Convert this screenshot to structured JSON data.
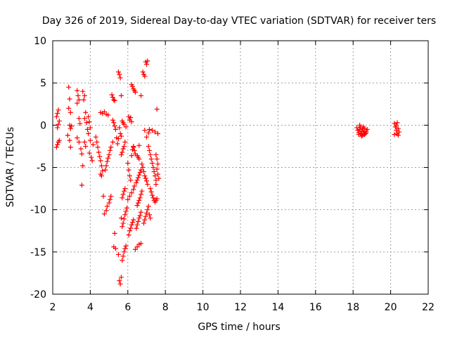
{
  "chart_data": {
    "type": "scatter",
    "title": "Day 326 of 2019, Sidereal Day-to-day VTEC variation (SDTVAR) for receiver ters",
    "xlabel": "GPS time / hours",
    "ylabel": "SDTVAR / TECUs",
    "xlim": [
      2,
      22
    ],
    "ylim": [
      -20,
      10
    ],
    "xticks": [
      2,
      4,
      6,
      8,
      10,
      12,
      14,
      16,
      18,
      20,
      22
    ],
    "yticks": [
      -20,
      -15,
      -10,
      -5,
      0,
      5,
      10
    ],
    "xtick_labels": [
      "2",
      "4",
      "6",
      "8",
      "10",
      "12",
      "14",
      "16",
      "18",
      "20",
      "22"
    ],
    "ytick_labels": [
      "-20",
      "-15",
      "-10",
      "-5",
      "0",
      "5",
      "10"
    ],
    "grid": true,
    "marker": "plus",
    "color": "#ff0000",
    "series": [
      {
        "name": "SDTVAR",
        "points": [
          [
            2.2,
            -2.6
          ],
          [
            2.25,
            -2.3
          ],
          [
            2.3,
            -2.0
          ],
          [
            2.35,
            -1.8
          ],
          [
            2.2,
            1.0
          ],
          [
            2.25,
            1.4
          ],
          [
            2.3,
            1.8
          ],
          [
            2.35,
            0.5
          ],
          [
            2.3,
            0.1
          ],
          [
            2.25,
            -0.3
          ],
          [
            2.85,
            4.5
          ],
          [
            2.9,
            3.1
          ],
          [
            2.85,
            2.0
          ],
          [
            2.95,
            1.5
          ],
          [
            2.9,
            0.0
          ],
          [
            2.95,
            -0.4
          ],
          [
            2.8,
            -1.2
          ],
          [
            2.9,
            -1.8
          ],
          [
            2.95,
            -2.6
          ],
          [
            3.0,
            -0.1
          ],
          [
            3.3,
            4.1
          ],
          [
            3.35,
            3.5
          ],
          [
            3.4,
            3.0
          ],
          [
            3.3,
            2.6
          ],
          [
            3.4,
            0.8
          ],
          [
            3.45,
            0.2
          ],
          [
            3.3,
            -1.5
          ],
          [
            3.4,
            -2.0
          ],
          [
            3.5,
            -2.8
          ],
          [
            3.55,
            -3.4
          ],
          [
            3.6,
            4.0
          ],
          [
            3.7,
            3.5
          ],
          [
            3.65,
            3.0
          ],
          [
            3.75,
            1.5
          ],
          [
            3.7,
            0.8
          ],
          [
            3.8,
            0.3
          ],
          [
            3.6,
            -4.8
          ],
          [
            3.55,
            -7.1
          ],
          [
            3.7,
            -2.0
          ],
          [
            3.75,
            -2.5
          ],
          [
            3.9,
            1.0
          ],
          [
            3.95,
            0.4
          ],
          [
            4.0,
            -0.3
          ],
          [
            3.85,
            -0.5
          ],
          [
            3.9,
            -1.0
          ],
          [
            4.0,
            -1.8
          ],
          [
            3.95,
            -3.3
          ],
          [
            4.05,
            -3.8
          ],
          [
            4.1,
            -4.2
          ],
          [
            4.15,
            -2.3
          ],
          [
            4.3,
            -1.4
          ],
          [
            4.35,
            -2.0
          ],
          [
            4.4,
            -2.6
          ],
          [
            4.45,
            -3.2
          ],
          [
            4.5,
            -3.7
          ],
          [
            4.55,
            -4.2
          ],
          [
            4.6,
            -4.8
          ],
          [
            4.65,
            -5.4
          ],
          [
            4.6,
            -6.0
          ],
          [
            4.55,
            -5.8
          ],
          [
            4.55,
            1.5
          ],
          [
            4.65,
            1.4
          ],
          [
            4.75,
            1.6
          ],
          [
            4.85,
            1.3
          ],
          [
            4.95,
            1.2
          ],
          [
            4.7,
            -8.4
          ],
          [
            4.75,
            -10.5
          ],
          [
            4.85,
            -10.1
          ],
          [
            4.9,
            -9.6
          ],
          [
            5.0,
            -9.2
          ],
          [
            5.05,
            -8.8
          ],
          [
            5.1,
            -8.4
          ],
          [
            4.8,
            -5.3
          ],
          [
            4.85,
            -4.8
          ],
          [
            4.9,
            -4.3
          ],
          [
            4.95,
            -3.9
          ],
          [
            5.0,
            -3.5
          ],
          [
            5.05,
            -3.0
          ],
          [
            5.1,
            -2.6
          ],
          [
            5.2,
            -2.0
          ],
          [
            5.15,
            3.6
          ],
          [
            5.2,
            3.3
          ],
          [
            5.25,
            3.0
          ],
          [
            5.3,
            2.9
          ],
          [
            5.2,
            0.6
          ],
          [
            5.25,
            0.3
          ],
          [
            5.3,
            -0.1
          ],
          [
            5.35,
            -0.5
          ],
          [
            5.3,
            -12.8
          ],
          [
            5.25,
            -14.4
          ],
          [
            5.35,
            -14.6
          ],
          [
            5.4,
            -1.5
          ],
          [
            5.45,
            -2.2
          ],
          [
            5.5,
            -1.6
          ],
          [
            5.55,
            -0.3
          ],
          [
            5.6,
            -1.0
          ],
          [
            5.5,
            6.3
          ],
          [
            5.55,
            6.0
          ],
          [
            5.6,
            5.6
          ],
          [
            5.65,
            3.5
          ],
          [
            5.55,
            -18.4
          ],
          [
            5.6,
            -18.8
          ],
          [
            5.65,
            -18.0
          ],
          [
            5.5,
            -15.3
          ],
          [
            5.7,
            -16.0
          ],
          [
            5.75,
            -15.5
          ],
          [
            5.8,
            -15.0
          ],
          [
            5.85,
            -14.6
          ],
          [
            5.9,
            -14.3
          ],
          [
            5.65,
            -11.0
          ],
          [
            5.7,
            -12.0
          ],
          [
            5.75,
            -11.6
          ],
          [
            5.8,
            -11.1
          ],
          [
            5.85,
            -10.6
          ],
          [
            5.9,
            -10.2
          ],
          [
            5.95,
            -9.8
          ],
          [
            5.7,
            -8.6
          ],
          [
            5.75,
            -8.2
          ],
          [
            5.8,
            -7.8
          ],
          [
            5.85,
            -7.5
          ],
          [
            5.65,
            -3.5
          ],
          [
            5.7,
            -3.2
          ],
          [
            5.75,
            -2.8
          ],
          [
            5.8,
            -2.5
          ],
          [
            5.85,
            -2.0
          ],
          [
            5.7,
            0.5
          ],
          [
            5.75,
            0.3
          ],
          [
            5.8,
            0.1
          ],
          [
            5.9,
            -0.2
          ],
          [
            5.65,
            -1.3
          ],
          [
            6.0,
            -4.5
          ],
          [
            6.05,
            -5.3
          ],
          [
            6.1,
            -6.0
          ],
          [
            6.15,
            -6.5
          ],
          [
            6.2,
            -3.6
          ],
          [
            6.25,
            -2.9
          ],
          [
            6.3,
            -2.6
          ],
          [
            6.05,
            -13.0
          ],
          [
            6.1,
            -12.5
          ],
          [
            6.15,
            -12.2
          ],
          [
            6.2,
            -11.8
          ],
          [
            6.25,
            -11.5
          ],
          [
            6.3,
            -11.2
          ],
          [
            6.0,
            -8.8
          ],
          [
            6.1,
            -8.4
          ],
          [
            6.2,
            -8.0
          ],
          [
            6.3,
            -7.6
          ],
          [
            6.35,
            -7.2
          ],
          [
            6.05,
            1.0
          ],
          [
            6.1,
            0.6
          ],
          [
            6.2,
            4.8
          ],
          [
            6.25,
            4.6
          ],
          [
            6.3,
            4.3
          ],
          [
            6.35,
            4.1
          ],
          [
            6.4,
            3.9
          ],
          [
            6.15,
            0.9
          ],
          [
            6.2,
            0.4
          ],
          [
            6.3,
            -2.5
          ],
          [
            6.35,
            -3.0
          ],
          [
            6.4,
            -3.4
          ],
          [
            6.4,
            -14.7
          ],
          [
            6.5,
            -14.4
          ],
          [
            6.6,
            -14.1
          ],
          [
            6.7,
            -14.0
          ],
          [
            6.45,
            -12.2
          ],
          [
            6.5,
            -11.8
          ],
          [
            6.55,
            -11.4
          ],
          [
            6.6,
            -11.0
          ],
          [
            6.65,
            -10.7
          ],
          [
            6.7,
            -10.3
          ],
          [
            6.45,
            -6.8
          ],
          [
            6.5,
            -6.5
          ],
          [
            6.55,
            -6.2
          ],
          [
            6.6,
            -5.9
          ],
          [
            6.65,
            -5.6
          ],
          [
            6.7,
            -5.3
          ],
          [
            6.5,
            -9.5
          ],
          [
            6.55,
            -9.2
          ],
          [
            6.6,
            -8.9
          ],
          [
            6.65,
            -8.6
          ],
          [
            6.7,
            -8.2
          ],
          [
            6.75,
            -7.8
          ],
          [
            6.5,
            -3.6
          ],
          [
            6.55,
            -3.8
          ],
          [
            6.6,
            -4.0
          ],
          [
            6.7,
            3.5
          ],
          [
            6.6,
            -2.4
          ],
          [
            6.75,
            -4.6
          ],
          [
            6.8,
            -5.0
          ],
          [
            6.85,
            -5.5
          ],
          [
            6.9,
            -6.0
          ],
          [
            6.95,
            -6.3
          ],
          [
            7.0,
            -6.6
          ],
          [
            7.05,
            -7.0
          ],
          [
            6.85,
            -11.6
          ],
          [
            6.9,
            -11.2
          ],
          [
            6.95,
            -10.8
          ],
          [
            7.0,
            -10.4
          ],
          [
            7.05,
            -10.0
          ],
          [
            7.1,
            -9.6
          ],
          [
            6.8,
            6.3
          ],
          [
            6.85,
            6.0
          ],
          [
            6.9,
            5.8
          ],
          [
            6.95,
            7.5
          ],
          [
            7.0,
            7.2
          ],
          [
            7.05,
            7.6
          ],
          [
            6.9,
            -0.6
          ],
          [
            7.0,
            -1.4
          ],
          [
            7.1,
            -0.9
          ],
          [
            7.15,
            -0.5
          ],
          [
            7.1,
            -2.5
          ],
          [
            7.15,
            -3.0
          ],
          [
            7.2,
            -3.5
          ],
          [
            7.25,
            -4.0
          ],
          [
            7.3,
            -4.5
          ],
          [
            7.35,
            -5.0
          ],
          [
            7.4,
            -5.5
          ],
          [
            7.45,
            -6.0
          ],
          [
            7.5,
            -6.5
          ],
          [
            7.3,
            -0.6
          ],
          [
            7.2,
            -7.5
          ],
          [
            7.25,
            -7.9
          ],
          [
            7.3,
            -8.3
          ],
          [
            7.35,
            -8.6
          ],
          [
            7.4,
            -8.9
          ],
          [
            7.45,
            -9.1
          ],
          [
            7.5,
            -8.9
          ],
          [
            7.55,
            -8.7
          ],
          [
            7.15,
            -10.6
          ],
          [
            7.2,
            -11.0
          ],
          [
            7.5,
            -3.5
          ],
          [
            7.55,
            -4.0
          ],
          [
            7.6,
            -4.6
          ],
          [
            7.55,
            -5.2
          ],
          [
            7.6,
            -5.8
          ],
          [
            7.65,
            -6.3
          ],
          [
            7.45,
            -0.8
          ],
          [
            7.55,
            1.9
          ],
          [
            7.6,
            -1.0
          ],
          [
            7.5,
            -7.0
          ],
          [
            18.2,
            -0.3
          ],
          [
            18.25,
            -0.6
          ],
          [
            18.3,
            -0.9
          ],
          [
            18.35,
            -0.5
          ],
          [
            18.4,
            -1.0
          ],
          [
            18.45,
            -0.7
          ],
          [
            18.5,
            -1.2
          ],
          [
            18.55,
            -0.8
          ],
          [
            18.6,
            -0.4
          ],
          [
            18.65,
            -1.0
          ],
          [
            18.7,
            -0.7
          ],
          [
            18.75,
            -0.5
          ],
          [
            18.4,
            -0.2
          ],
          [
            18.5,
            -0.4
          ],
          [
            18.3,
            -1.1
          ],
          [
            18.6,
            -1.1
          ],
          [
            18.35,
            0.0
          ],
          [
            18.55,
            -0.2
          ],
          [
            18.7,
            -0.9
          ],
          [
            18.45,
            -1.3
          ],
          [
            20.2,
            0.2
          ],
          [
            20.25,
            -0.2
          ],
          [
            20.3,
            -0.6
          ],
          [
            20.35,
            -1.0
          ],
          [
            20.4,
            -0.4
          ],
          [
            20.45,
            -0.8
          ],
          [
            20.3,
            0.0
          ],
          [
            20.2,
            -1.1
          ],
          [
            20.4,
            -1.2
          ],
          [
            20.35,
            0.3
          ]
        ]
      }
    ]
  }
}
